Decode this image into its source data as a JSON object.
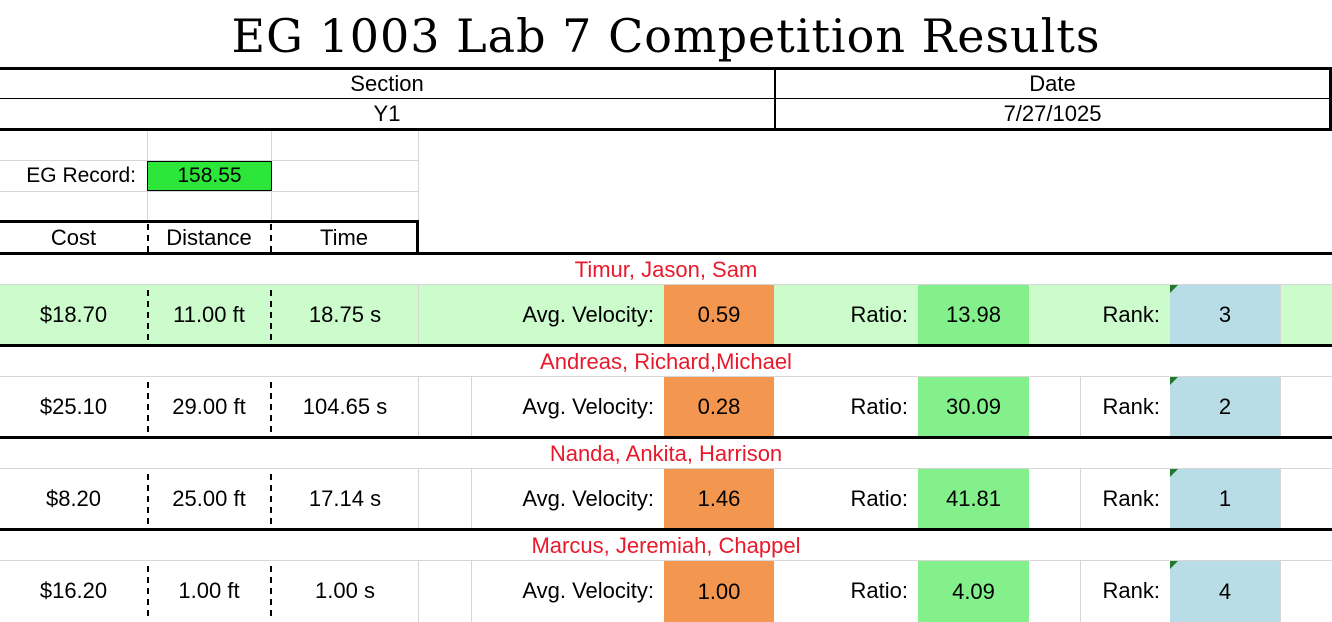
{
  "title": "EG 1003 Lab 7 Competition Results",
  "header": {
    "section_label": "Section",
    "section_value": "Y1",
    "date_label": "Date",
    "date_value": "7/27/1025"
  },
  "record": {
    "label": "EG Record:",
    "value": "158.55"
  },
  "columns": {
    "cost": "Cost",
    "distance": "Distance",
    "time": "Time"
  },
  "labels": {
    "velocity": "Avg. Velocity:",
    "ratio": "Ratio:",
    "rank": "Rank:"
  },
  "teams": [
    {
      "names": "Timur, Jason, Sam",
      "cost": "$18.70",
      "distance": "11.00 ft",
      "time": "18.75 s",
      "velocity": "0.59",
      "ratio": "13.98",
      "rank": "3"
    },
    {
      "names": "Andreas, Richard,Michael",
      "cost": "$25.10",
      "distance": "29.00 ft",
      "time": "104.65 s",
      "velocity": "0.28",
      "ratio": "30.09",
      "rank": "2"
    },
    {
      "names": "Nanda, Ankita, Harrison",
      "cost": "$8.20",
      "distance": "25.00 ft",
      "time": "17.14 s",
      "velocity": "1.46",
      "ratio": "41.81",
      "rank": "1"
    },
    {
      "names": "Marcus, Jeremiah, Chappel",
      "cost": "$16.20",
      "distance": "1.00 ft",
      "time": "1.00 s",
      "velocity": "1.00",
      "ratio": "4.09",
      "rank": "4"
    }
  ],
  "colors": {
    "team_names": "#e8192c",
    "velocity_cell": "#f39650",
    "ratio_cell": "#84f08c",
    "rank_cell": "#b8dde6",
    "highlight_row": "#ccfbcc",
    "record_cell": "#2ce63a"
  }
}
